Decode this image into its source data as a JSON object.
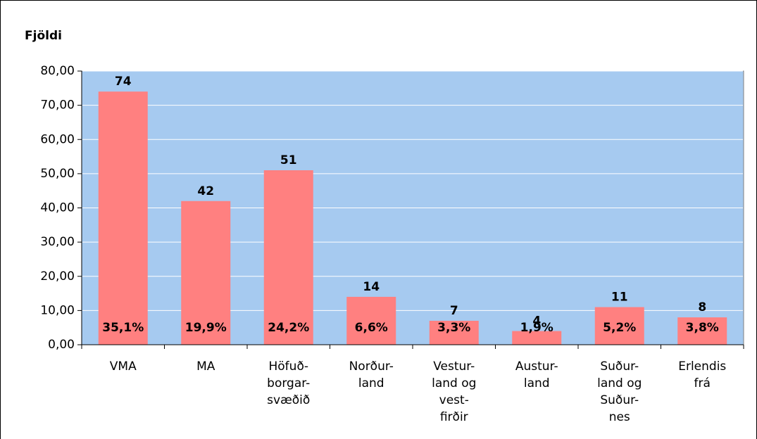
{
  "chart_data": {
    "type": "bar",
    "y_label": "Fjöldi",
    "categories": [
      "VMA",
      "MA",
      "Höfuð-\nborgar-\nsvæðið",
      "Norður-\nland",
      "Vestur-\nland og\nvest-\nfirðir",
      "Austur-\nland",
      "Suður-\nland og\nSuður-\nnes",
      "Erlendis\nfrá"
    ],
    "values": [
      74,
      42,
      51,
      14,
      7,
      4,
      11,
      8
    ],
    "shares": {
      "values": [
        35.1,
        19.9,
        24.2,
        6.6,
        3.3,
        1.9,
        5.2,
        3.8
      ],
      "value_labels": [
        "35,1%",
        "19,9%",
        "24,2%",
        "6,6%",
        "3,3%",
        "1,9%",
        "5,2%",
        "3,8%"
      ]
    },
    "color": "#ff8080",
    "plot_background": "#a6caf0",
    "ylim": [
      0,
      80
    ],
    "yticks": [
      {
        "value": 0,
        "label": "0,00"
      },
      {
        "value": 10,
        "label": "10,00"
      },
      {
        "value": 20,
        "label": "20,00"
      },
      {
        "value": 30,
        "label": "30,00"
      },
      {
        "value": 40,
        "label": "40,00"
      },
      {
        "value": 50,
        "label": "50,00"
      },
      {
        "value": 60,
        "label": "60,00"
      },
      {
        "value": 70,
        "label": "70,00"
      },
      {
        "value": 80,
        "label": "80,00"
      }
    ],
    "grid": true
  }
}
